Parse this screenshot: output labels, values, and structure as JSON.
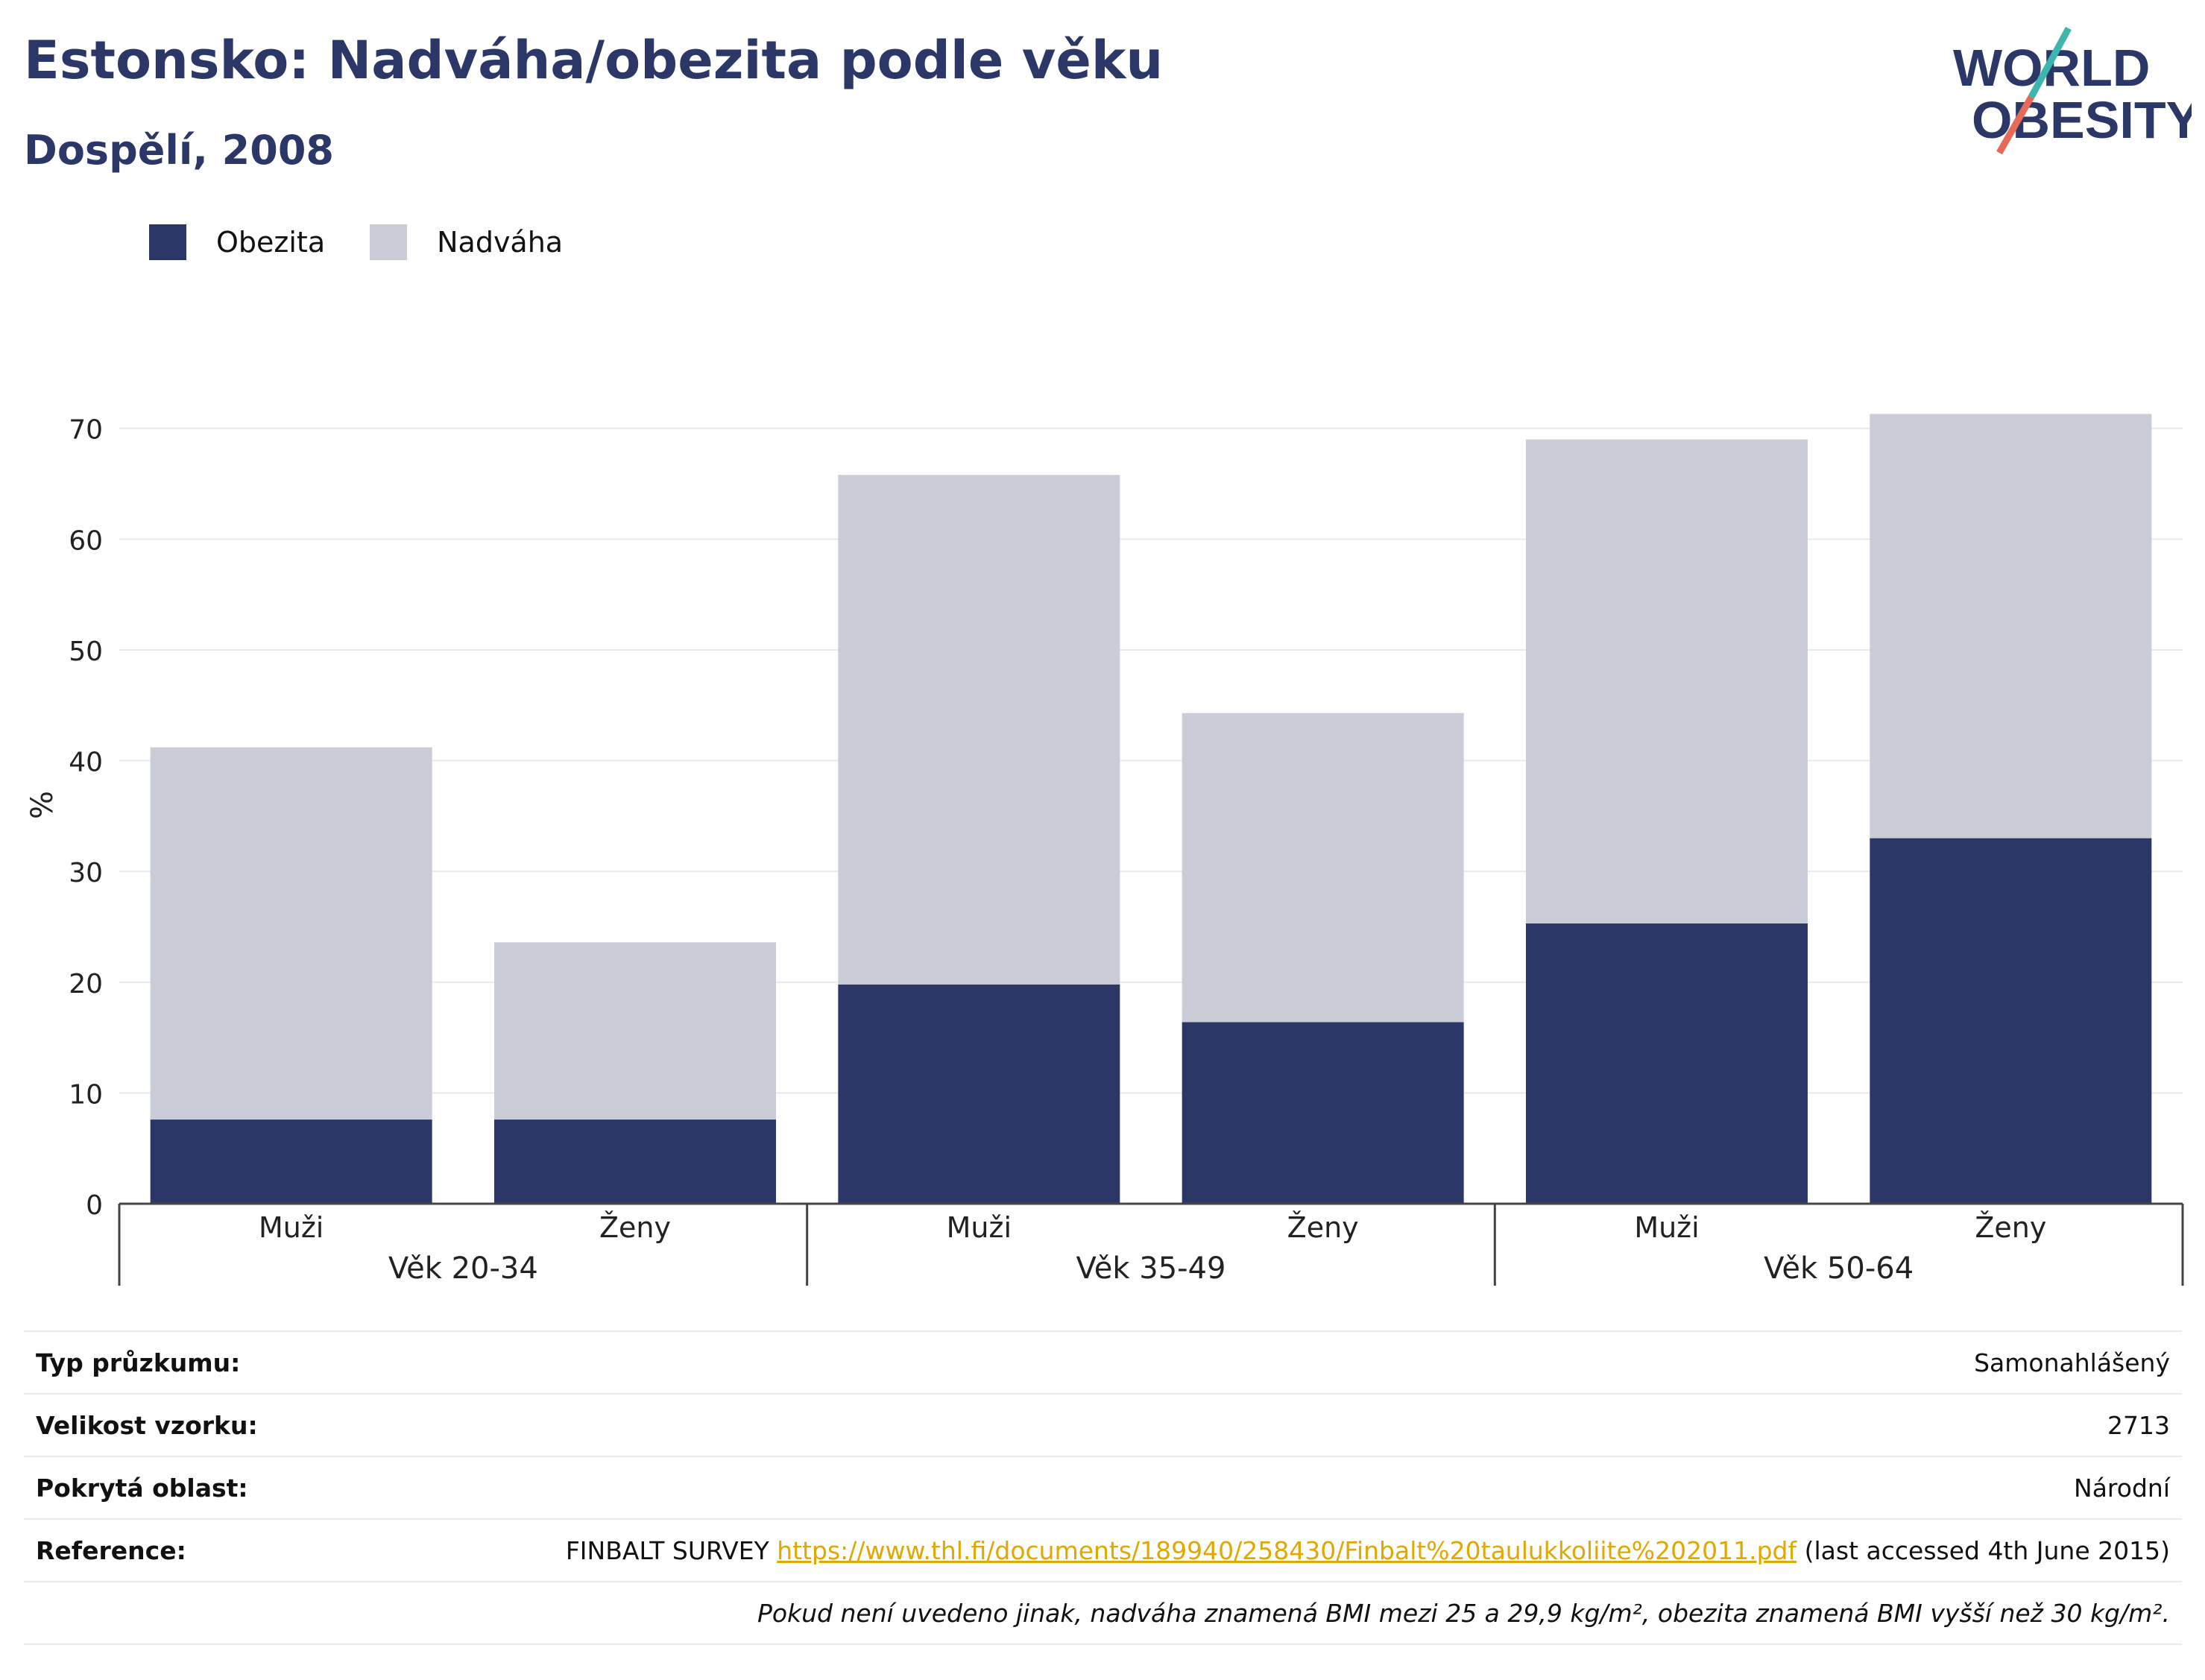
{
  "title": "Estonsko: Nadváha/obezita podle věku",
  "subtitle": "Dospělí, 2008",
  "logo": {
    "line1": "WORLD",
    "line2": "OBESITY"
  },
  "colors": {
    "obesity": "#2b3766",
    "overweight": "#cacdd8",
    "accent_red": "#e76a56",
    "accent_teal": "#3fb5b0",
    "link": "#e0a800"
  },
  "chart_data": {
    "type": "bar",
    "stacked": true,
    "ylabel": "%",
    "ylim": [
      0,
      72
    ],
    "yticks": [
      0,
      10,
      20,
      30,
      40,
      50,
      60,
      70
    ],
    "groups": [
      "Věk 20-34",
      "Věk 35-49",
      "Věk 50-64"
    ],
    "categories": [
      "Muži",
      "Ženy",
      "Muži",
      "Ženy",
      "Muži",
      "Ženy"
    ],
    "series": [
      {
        "name": "Obezita",
        "color": "#2b3766",
        "values": [
          7.6,
          7.6,
          19.8,
          16.4,
          25.3,
          33.0
        ]
      },
      {
        "name": "Nadváha",
        "color": "#cacdd8",
        "values": [
          33.6,
          16.0,
          46.0,
          27.9,
          43.7,
          38.3
        ]
      }
    ],
    "legend_position": "top-left",
    "grid": true
  },
  "info": [
    {
      "label": "Typ průzkumu:",
      "value": "Samonahlášený"
    },
    {
      "label": "Velikost vzorku:",
      "value": "2713"
    },
    {
      "label": "Pokrytá oblast:",
      "value": "Národní"
    }
  ],
  "reference": {
    "label": "Reference:",
    "prefix": "FINBALT SURVEY ",
    "link": "https://www.thl.fi/documents/189940/258430/Finbalt%20taulukkoliite%202011.pdf",
    "suffix": " (last accessed 4th June 2015)"
  },
  "footnote": "Pokud není uvedeno jinak, nadváha znamená BMI mezi 25 a 29,9 kg/m², obezita znamená BMI vyšší než 30 kg/m²."
}
